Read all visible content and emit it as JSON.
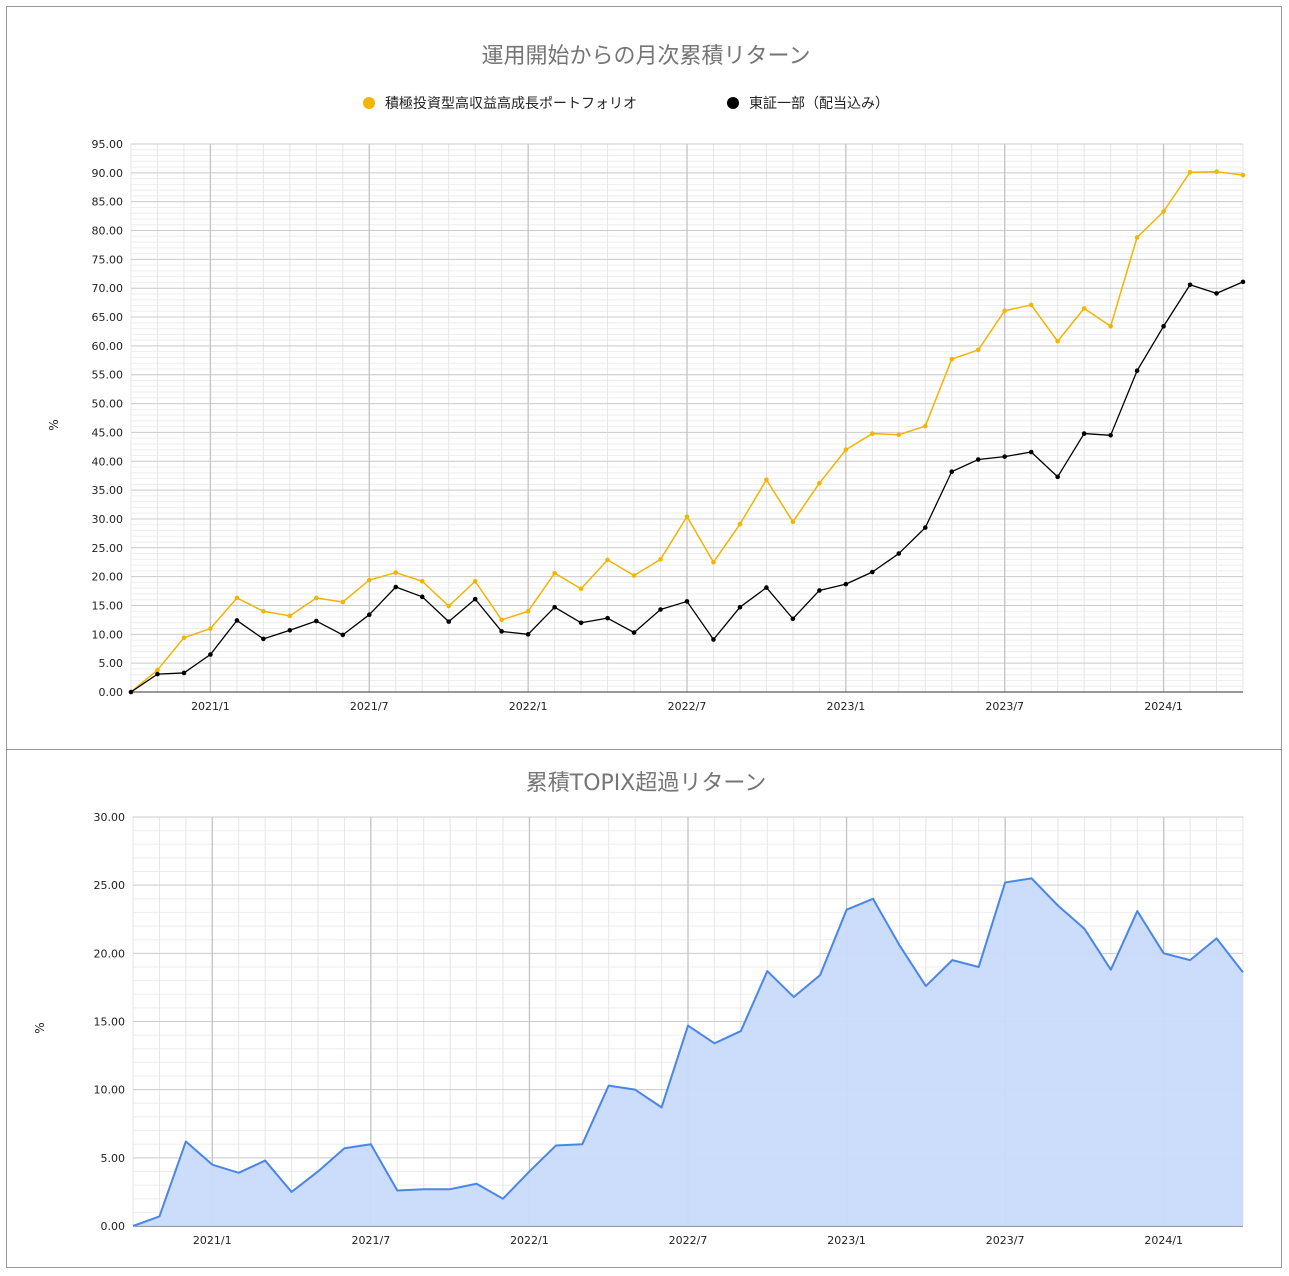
{
  "charts": [
    {
      "title": "運用開始からの月次累積リターン",
      "ylabel": "%",
      "legend": [
        {
          "name": "積極投資型高収益高成長ポートフォリオ",
          "color": "#f4b400"
        },
        {
          "name": "東証一部（配当込み）",
          "color": "#000000"
        }
      ]
    },
    {
      "title": "累積TOPIX超過リターン",
      "ylabel": "%"
    }
  ],
  "chart_data": [
    {
      "type": "line",
      "title": "運用開始からの月次累積リターン",
      "xlabel": "",
      "ylabel": "%",
      "ylim": [
        0,
        95
      ],
      "yticks": [
        "0.00",
        "5.00",
        "10.00",
        "15.00",
        "20.00",
        "25.00",
        "30.00",
        "35.00",
        "40.00",
        "45.00",
        "50.00",
        "55.00",
        "60.00",
        "65.00",
        "70.00",
        "75.00",
        "80.00",
        "85.00",
        "90.00",
        "95.00"
      ],
      "x": [
        "2020/10",
        "2020/11",
        "2020/12",
        "2021/1",
        "2021/2",
        "2021/3",
        "2021/4",
        "2021/5",
        "2021/6",
        "2021/7",
        "2021/8",
        "2021/9",
        "2021/10",
        "2021/11",
        "2021/12",
        "2022/1",
        "2022/2",
        "2022/3",
        "2022/4",
        "2022/5",
        "2022/6",
        "2022/7",
        "2022/8",
        "2022/9",
        "2022/10",
        "2022/11",
        "2022/12",
        "2023/1",
        "2023/2",
        "2023/3",
        "2023/4",
        "2023/5",
        "2023/6",
        "2023/7",
        "2023/8",
        "2023/9",
        "2023/10",
        "2023/11",
        "2023/12",
        "2024/1",
        "2024/2",
        "2024/3",
        "2024/4"
      ],
      "xtick_labels": [
        "2021/1",
        "2021/7",
        "2022/1",
        "2022/7",
        "2023/1",
        "2023/7",
        "2024/1"
      ],
      "grid": true,
      "legend_position": "top",
      "series": [
        {
          "name": "積極投資型高収益高成長ポートフォリオ",
          "color": "#f4b400",
          "values": [
            0.0,
            3.8,
            9.4,
            11.0,
            16.3,
            14.0,
            13.2,
            16.3,
            15.6,
            19.4,
            20.7,
            19.2,
            14.9,
            19.2,
            12.5,
            14.0,
            20.6,
            17.9,
            22.9,
            20.2,
            23.0,
            30.4,
            22.5,
            29.1,
            36.8,
            29.5,
            36.2,
            42.0,
            44.8,
            44.6,
            46.1,
            57.7,
            59.3,
            66.1,
            67.1,
            60.8,
            66.5,
            63.4,
            78.8,
            83.3,
            90.1,
            90.2,
            89.6
          ]
        },
        {
          "name": "東証一部（配当込み）",
          "color": "#000000",
          "values": [
            0.0,
            3.1,
            3.3,
            6.5,
            12.4,
            9.2,
            10.7,
            12.3,
            9.9,
            13.4,
            18.2,
            16.5,
            12.2,
            16.1,
            10.5,
            10.0,
            14.7,
            12.0,
            12.8,
            10.3,
            14.3,
            15.7,
            9.1,
            14.7,
            18.1,
            12.7,
            17.6,
            18.7,
            20.8,
            24.0,
            28.5,
            38.2,
            40.3,
            40.8,
            41.6,
            37.3,
            44.8,
            44.5,
            55.7,
            63.4,
            70.6,
            69.1,
            71.1
          ]
        }
      ]
    },
    {
      "type": "area",
      "title": "累積TOPIX超過リターン",
      "xlabel": "",
      "ylabel": "%",
      "ylim": [
        0,
        30
      ],
      "yticks": [
        "0.00",
        "5.00",
        "10.00",
        "15.00",
        "20.00",
        "25.00",
        "30.00"
      ],
      "x": [
        "2020/10",
        "2020/11",
        "2020/12",
        "2021/1",
        "2021/2",
        "2021/3",
        "2021/4",
        "2021/5",
        "2021/6",
        "2021/7",
        "2021/8",
        "2021/9",
        "2021/10",
        "2021/11",
        "2021/12",
        "2022/1",
        "2022/2",
        "2022/3",
        "2022/4",
        "2022/5",
        "2022/6",
        "2022/7",
        "2022/8",
        "2022/9",
        "2022/10",
        "2022/11",
        "2022/12",
        "2023/1",
        "2023/2",
        "2023/3",
        "2023/4",
        "2023/5",
        "2023/6",
        "2023/7",
        "2023/8",
        "2023/9",
        "2023/10",
        "2023/11",
        "2023/12",
        "2024/1",
        "2024/2",
        "2024/3",
        "2024/4"
      ],
      "xtick_labels": [
        "2021/1",
        "2021/7",
        "2022/1",
        "2022/7",
        "2023/1",
        "2023/7",
        "2024/1"
      ],
      "grid": true,
      "series": [
        {
          "color": "#4a86e8",
          "fill": "#c9dafb",
          "values": [
            0.0,
            0.7,
            6.2,
            4.5,
            3.9,
            4.8,
            2.5,
            4.0,
            5.7,
            6.0,
            2.6,
            2.7,
            2.7,
            3.1,
            2.0,
            4.0,
            5.9,
            6.0,
            10.3,
            10.0,
            8.7,
            14.7,
            13.4,
            14.3,
            18.7,
            16.8,
            18.4,
            23.2,
            24.0,
            20.6,
            17.6,
            19.5,
            19.0,
            25.2,
            25.5,
            23.5,
            21.8,
            18.8,
            23.1,
            20.0,
            19.5,
            21.1,
            18.6
          ]
        }
      ]
    }
  ]
}
